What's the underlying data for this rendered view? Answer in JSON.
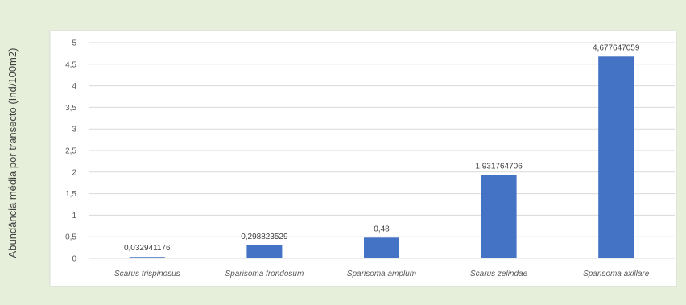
{
  "chart_data": {
    "type": "bar",
    "title": "",
    "xlabel": "",
    "ylabel": "Abundância média por transecto (Ind/100m2)",
    "categories": [
      "Scarus trispinosus",
      "Sparisoma frondosum",
      "Sparisoma amplum",
      "Scarus zelindae",
      "Sparisoma axillare"
    ],
    "values": [
      0.032941176,
      0.298823529,
      0.48,
      1.931764706,
      4.677647059
    ],
    "data_labels": [
      "0,032941176",
      "0,298823529",
      "0,48",
      "1,931764706",
      "4,677647059"
    ],
    "ylim": [
      0,
      5
    ],
    "yticks": [
      0,
      0.5,
      1,
      1.5,
      2,
      2.5,
      3,
      3.5,
      4,
      4.5,
      5
    ],
    "ytick_labels": [
      "0",
      "0,5",
      "1",
      "1,5",
      "2",
      "2,5",
      "3",
      "3,5",
      "4",
      "4,5",
      "5"
    ],
    "grid": true,
    "legend": "none",
    "colors": {
      "bar": "#4472c4",
      "background": "#e6efd9",
      "plot": "#ffffff",
      "grid": "#d9d9d9"
    }
  }
}
